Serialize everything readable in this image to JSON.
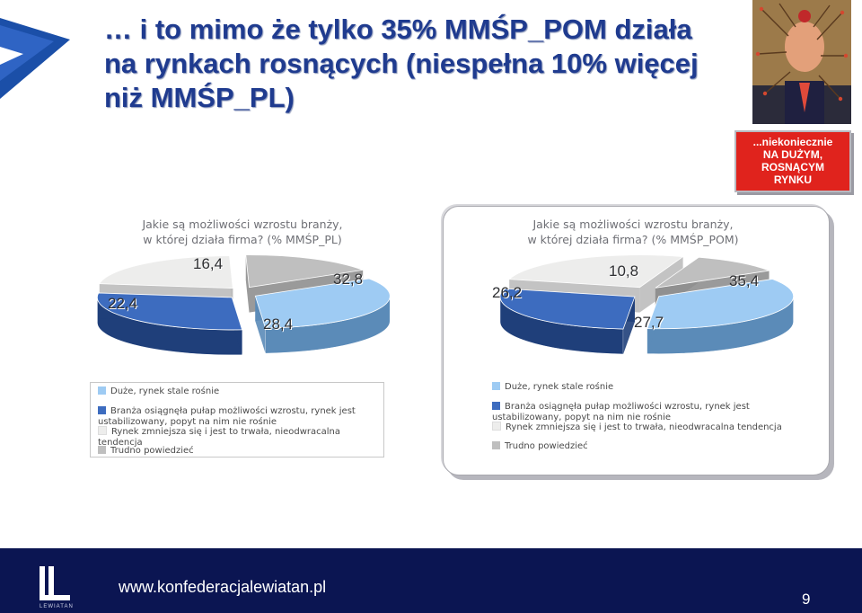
{
  "slide": {
    "title_lines": [
      "… i to mimo że tylko 35% MMŚP_POM działa",
      "na rynkach rosnących (niespełna 10% więcej",
      "niż MMŚP_PL)"
    ],
    "badge_lines": [
      "...niekoniecznie",
      "NA DUŻYM,",
      "ROSNĄCYM",
      "RYNKU"
    ],
    "footer_url": "www.konfederacjalewiatan.pl",
    "page_number": "9",
    "brand_name": "LEWIATAN"
  },
  "legend": [
    {
      "label": "Duże, rynek stale rośnie",
      "color": "#9ecbf3"
    },
    {
      "label": "Branża osiągnęła pułap możliwości wzrostu, rynek jest ustabilizowany, popyt na nim nie rośnie",
      "color": "#3d6cbf"
    },
    {
      "label": "Rynek zmniejsza się i jest to trwała, nieodwracalna tendencja",
      "color": "#ededec"
    },
    {
      "label": "Trudno powiedzieć",
      "color": "#bfbfbf"
    }
  ],
  "chart_data": [
    {
      "type": "pie",
      "title_lines": [
        "Jakie są możliwości wzrostu branży,",
        "w której działa firma? (% MMŚP_PL)"
      ],
      "categories": [
        "Duże, rynek stale rośnie",
        "Branża osiągnęła pułap możliwości wzrostu, rynek jest ustabilizowany, popyt na nim nie rośnie",
        "Rynek zmniejsza się i jest to trwała, nieodwracalna tendencja",
        "Trudno powiedzieć"
      ],
      "values": [
        32.8,
        28.4,
        22.4,
        16.4
      ],
      "labels": [
        "32,8",
        "28,4",
        "22,4",
        "16,4"
      ],
      "legend_position": "bottom"
    },
    {
      "type": "pie",
      "title_lines": [
        "Jakie są możliwości wzrostu branży,",
        "w której działa firma? (% MMŚP_POM)"
      ],
      "categories": [
        "Duże, rynek stale rośnie",
        "Branża osiągnęła pułap możliwości wzrostu, rynek jest ustabilizowany, popyt na nim nie rośnie",
        "Rynek zmniejsza się i jest to trwała, nieodwracalna tendencja",
        "Trudno powiedzieć"
      ],
      "values": [
        35.4,
        27.7,
        26.2,
        10.8
      ],
      "labels": [
        "35,4",
        "27,7",
        "26,2",
        "10,8"
      ],
      "legend_position": "bottom"
    }
  ]
}
